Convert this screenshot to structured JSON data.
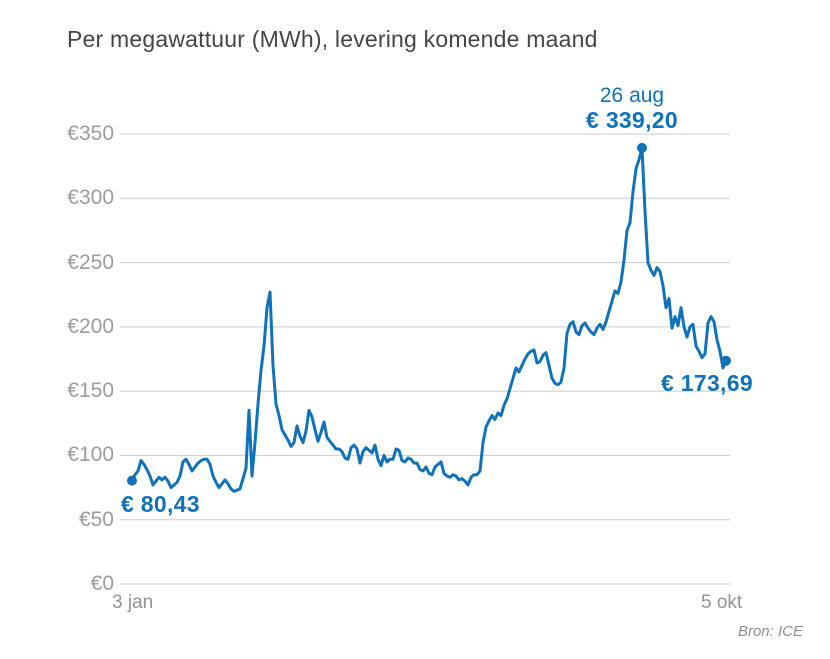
{
  "title": "Per megawattuur (MWh), levering komende maand",
  "source": "Bron: ICE",
  "colors": {
    "line": "#1172ba",
    "marker": "#1172ba",
    "grid": "#cbcbcb",
    "axis_text": "#9c9c9c",
    "annotation_text": "#1172ba",
    "title_text": "#454545",
    "source_text": "#8d8d8d",
    "background": "#ffffff"
  },
  "chart_data": {
    "type": "line",
    "title": "Per megawattuur (MWh), levering komende maand",
    "unit": "EUR per MWh",
    "x_start_label": "3 jan",
    "x_end_label": "5 okt",
    "ylim": [
      0,
      380
    ],
    "grid": true,
    "legend": false,
    "y_ticks": [
      {
        "value": 0,
        "label": "€0"
      },
      {
        "value": 50,
        "label": "€50"
      },
      {
        "value": 100,
        "label": "€100"
      },
      {
        "value": 150,
        "label": "€150"
      },
      {
        "value": 200,
        "label": "€200"
      },
      {
        "value": 250,
        "label": "€250"
      },
      {
        "value": 300,
        "label": "€300"
      },
      {
        "value": 350,
        "label": "€350"
      }
    ],
    "values": [
      80.43,
      85,
      88,
      96,
      93,
      89,
      84,
      77,
      80,
      83,
      81,
      83,
      80,
      75,
      77,
      79,
      84,
      95,
      97,
      93,
      88,
      91,
      94,
      96,
      97,
      97,
      93,
      84,
      79,
      75,
      78,
      81,
      78,
      74,
      72,
      73,
      74,
      82,
      90,
      135,
      84,
      110,
      140,
      166,
      185,
      215,
      227,
      170,
      140,
      131,
      120,
      116,
      112,
      107,
      110,
      123,
      115,
      110,
      119,
      135,
      130,
      120,
      111,
      118,
      126,
      114,
      111,
      108,
      105,
      105,
      103,
      98,
      97,
      106,
      108,
      105,
      94,
      103,
      106,
      104,
      102,
      108,
      97,
      92,
      100,
      95,
      97,
      97,
      105,
      104,
      96,
      95,
      98,
      97,
      94,
      94,
      89,
      88,
      91,
      86,
      85,
      91,
      93,
      95,
      86,
      84,
      83,
      85,
      84,
      81,
      82,
      80,
      77,
      83,
      85,
      85,
      88,
      110,
      122,
      127,
      131,
      128,
      133,
      131,
      139,
      144,
      152,
      160,
      168,
      165,
      170,
      175,
      179,
      181,
      182,
      172,
      173,
      178,
      180,
      170,
      160,
      156,
      155,
      157,
      168,
      195,
      202,
      204,
      196,
      194,
      201,
      203,
      199,
      196,
      194,
      199,
      202,
      198,
      204,
      212,
      220,
      228,
      226,
      235,
      252,
      275,
      281,
      305,
      323,
      330,
      339.2,
      290,
      250,
      244,
      240,
      246,
      243,
      232,
      215,
      222,
      199,
      208,
      201,
      215,
      200,
      192,
      200,
      202,
      185,
      181,
      176,
      179,
      203,
      208,
      204,
      190,
      181,
      168,
      173.69
    ],
    "annotations": {
      "peak": {
        "date": "26 aug",
        "value_label": "€ 339,20",
        "value": 339.2,
        "point_index": 170
      },
      "start": {
        "value_label": "€ 80,43",
        "value": 80.43,
        "point_index": 0
      },
      "end": {
        "value_label": "€ 173,69",
        "value": 173.69,
        "point_index": 198
      }
    }
  }
}
